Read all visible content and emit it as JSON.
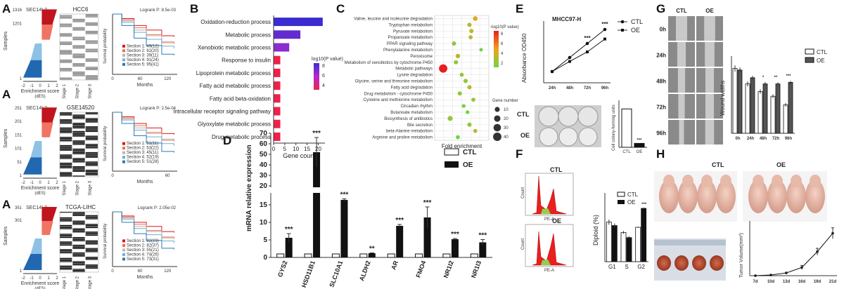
{
  "panels": {
    "A": {
      "label": "A",
      "rows": [
        {
          "gene": "SEC14L2",
          "dataset": "HCC6",
          "yticks": [
            "1316",
            "1201",
            "",
            "",
            "",
            "1"
          ],
          "samples_ylabel": "Samples",
          "x_label": "Enrichment score",
          "x_sub": "(dES)",
          "xticks": [
            "-2",
            "-1",
            "0",
            "1",
            "2"
          ],
          "km_title": "Logrank P: 8.5e-03",
          "km_xlabel": "Months",
          "km_ylabel": "Survival probability",
          "km_xticks": [
            "0",
            "60",
            "120"
          ],
          "legend": [
            "Section 1: 49(12)",
            "Section 2: 62(20)",
            "Section 3: 39(11)",
            "Section 4: 91(24)",
            "Section 5: 95(41)"
          ]
        },
        {
          "gene": "SEC14L2",
          "dataset": "GSE14520",
          "yticks": [
            "251",
            "201",
            "151",
            "101",
            "51",
            "1"
          ],
          "samples_ylabel": "Samples",
          "x_label": "Enrichment score",
          "x_sub": "(dES)",
          "xticks": [
            "-2",
            "-1",
            "0",
            "1",
            "2"
          ],
          "km_title": "Logrank P: 2.5e-04",
          "km_xlabel": "Months",
          "km_ylabel": "Survival probability",
          "km_xticks": [
            "0",
            "",
            "60"
          ],
          "legend": [
            "Section 1: 51(11)",
            "Section 2: 53(22)",
            "Section 3: 45(11)",
            "Section 4: 52(19)",
            "Section 5: 51(28)"
          ]
        },
        {
          "gene": "SEC14L2",
          "dataset": "TCGA-LIHC",
          "yticks": [
            "351",
            "301",
            "",
            "",
            "",
            "1"
          ],
          "samples_ylabel": "Samples",
          "x_label": "Enrichment score",
          "x_sub": "(dES)",
          "xticks": [
            "-2",
            "-1",
            "0",
            "1",
            "2"
          ],
          "km_title": "Logrank P: 2.05e-02",
          "km_xlabel": "Months",
          "km_ylabel": "Survival probability",
          "km_xticks": [
            "0",
            "60",
            "120"
          ],
          "legend": [
            "Section 1: 82(23)",
            "Section 2: 82(37)",
            "Section 3: 55(21)",
            "Section 4: 74(26)",
            "Section 5: 73(31)"
          ]
        }
      ],
      "stage_labels": [
        "Stage 1",
        "Stage 2",
        "Stage 3"
      ]
    },
    "B": {
      "label": "B",
      "xlabel": "Gene count",
      "xticks": [
        "0",
        "5",
        "10",
        "15",
        "20"
      ],
      "legend_title": "log10(P value)",
      "legend_ticks": [
        "8",
        "6",
        "4"
      ]
    },
    "C": {
      "label": "C",
      "xlabel": "Fold enrichment",
      "legend_title": "-log10(P value)",
      "legend_ticks": [
        "8",
        "6",
        "4",
        "2"
      ],
      "size_title": "Gene number",
      "size_ticks": [
        "10",
        "20",
        "30",
        "40"
      ]
    },
    "D": {
      "label": "D",
      "ylabel": "mRNA relative expression",
      "legend": [
        "CTL",
        "OE"
      ]
    },
    "E": {
      "label": "E",
      "title": "MHCC97-H",
      "ylabel": "Absorbance OD450",
      "legend": [
        "CTL",
        "OE"
      ],
      "row_labels": [
        "CTL",
        "OE"
      ],
      "colony_ylabel": "Cell colony-forming units",
      "colony_x": [
        "CTL",
        "OE"
      ],
      "colony_sig": "***"
    },
    "F": {
      "label": "F",
      "ctl": "CTL",
      "oe": "OE",
      "ylabel": "Diploid (%)",
      "legend": [
        "CTL",
        "OE"
      ],
      "flow_ylabel": "Count",
      "flow_xlabel": "PE-A"
    },
    "G": {
      "label": "G",
      "cols": [
        "CTL",
        "OE"
      ],
      "rows": [
        "0h",
        "24h",
        "48h",
        "72h",
        "96h"
      ],
      "ylabel": "Wound widths",
      "legend": [
        "CTL",
        "OE"
      ]
    },
    "H": {
      "label": "H",
      "ctl": "CTL",
      "oe": "OE",
      "ylabel": "Tumor Volume(mm³)"
    }
  },
  "chart_data": [
    {
      "id": "B",
      "type": "bar",
      "orientation": "horizontal",
      "categories": [
        "Oxidation-reduction process",
        "Metabolic process",
        "Xenobiotic metabolic process",
        "Response to insulin",
        "Lipoprotein metabolic process",
        "Fatty acid metabolic process",
        "Fatty acid beta-oxidation",
        "Intracellular receptor signaling pathway",
        "Glyoxylate metabolic process",
        "Drug metabolic process"
      ],
      "values": [
        22,
        12,
        7,
        3,
        3,
        3,
        3,
        3,
        3,
        3
      ],
      "neglog10p": [
        9,
        8,
        7,
        3,
        3,
        3,
        3,
        3,
        3,
        3
      ],
      "xlim": [
        0,
        23
      ]
    },
    {
      "id": "C",
      "type": "scatter",
      "categories": [
        "Valine, leucine and isoleucine degradation",
        "Tryptophan metabolism",
        "Pyruvate metabolism",
        "Propanoate metabolism",
        "PPAR signaling pathway",
        "Phenylalanine metabolism",
        "Peroxisome",
        "Metabolism of xenobiotics by cytochrome P450",
        "Metabolic pathways",
        "Lysine degradation",
        "Glycine, serine and threonine metabolism",
        "Fatty acid degradation",
        "Drug metabolism - cytochrome P450",
        "Cysteine and methionine metabolism",
        "Circadian rhythm",
        "Butanoate metabolism",
        "Biosynthesis of antibiotics",
        "Bile secretion",
        "beta-Alanine metabolism",
        "Arginine and proline metabolism"
      ],
      "fold": [
        10.5,
        9,
        9.5,
        9.3,
        5,
        12,
        6,
        5.5,
        2.2,
        7,
        8,
        9,
        6.5,
        10,
        7.5,
        8.5,
        4,
        9,
        10.5,
        6
      ],
      "neglog10p": [
        5,
        4,
        4,
        4,
        3,
        2,
        4,
        3,
        9,
        3,
        3,
        4,
        3,
        3,
        2,
        2,
        3,
        3,
        4,
        2
      ],
      "genes": [
        8,
        6,
        6,
        5,
        6,
        3,
        7,
        6,
        40,
        5,
        6,
        6,
        6,
        5,
        4,
        4,
        10,
        6,
        5,
        5
      ]
    },
    {
      "id": "D",
      "type": "bar",
      "categories": [
        "GYS2",
        "HSD11B1",
        "SLC10A1",
        "ALDH2",
        "AR",
        "FMO4",
        "NR1I2",
        "NR1I3"
      ],
      "series": [
        {
          "name": "CTL",
          "values": [
            1,
            1,
            1,
            1,
            1,
            1,
            1,
            1
          ],
          "err": [
            0.1,
            0.1,
            0.1,
            0.1,
            0.1,
            0.1,
            0.1,
            0.1
          ]
        },
        {
          "name": "OE",
          "values": [
            5.6,
            52,
            16.4,
            1.2,
            9,
            11.4,
            5.2,
            4.3
          ],
          "err": [
            1.2,
            14,
            0.3,
            0.1,
            0.4,
            3.0,
            0.2,
            0.8
          ]
        }
      ],
      "sig": [
        "***",
        "***",
        "***",
        "**",
        "***",
        "***",
        "***",
        "***"
      ],
      "yticks_lower": [
        0,
        5,
        10,
        15
      ],
      "yticks_upper": [
        20,
        30,
        40,
        50,
        60,
        70
      ]
    },
    {
      "id": "E",
      "type": "line",
      "x": [
        "24h",
        "48h",
        "72h",
        "96h"
      ],
      "series": [
        {
          "name": "CTL",
          "values": [
            0.8,
            1.05,
            1.3,
            1.55
          ]
        },
        {
          "name": "OE",
          "values": [
            0.8,
            0.98,
            1.15,
            1.38
          ]
        }
      ],
      "sig": [
        "",
        "",
        "***",
        "***"
      ]
    },
    {
      "id": "E-colony",
      "type": "bar",
      "categories": [
        "CTL",
        "OE"
      ],
      "values": [
        490,
        50
      ],
      "err": [
        10,
        8
      ],
      "ylim": [
        0,
        600
      ]
    },
    {
      "id": "F",
      "type": "bar",
      "categories": [
        "G1",
        "S",
        "G2"
      ],
      "series": [
        {
          "name": "CTL",
          "values": [
            23,
            17,
            20
          ],
          "err": [
            1.5,
            0.8,
            0.3
          ]
        },
        {
          "name": "OE",
          "values": [
            21,
            14,
            31
          ],
          "err": [
            1.2,
            0.8,
            0.5
          ]
        }
      ],
      "sig": [
        "",
        "",
        "***"
      ],
      "ylim": [
        0,
        40
      ]
    },
    {
      "id": "G",
      "type": "bar",
      "categories": [
        "0h",
        "24h",
        "48h",
        "72h",
        "96h"
      ],
      "series": [
        {
          "name": "CTL",
          "values": [
            210,
            160,
            135,
            120,
            92
          ],
          "err": [
            10,
            8,
            7,
            6,
            6
          ]
        },
        {
          "name": "OE",
          "values": [
            205,
            180,
            160,
            160,
            165
          ],
          "err": [
            8,
            6,
            6,
            5,
            5
          ]
        }
      ],
      "sig": [
        "",
        "",
        "*",
        "**",
        "***"
      ],
      "ylim": [
        0,
        250
      ]
    },
    {
      "id": "H",
      "type": "line",
      "x": [
        "7d",
        "10d",
        "13d",
        "16d",
        "19d",
        "21d"
      ],
      "values": [
        0,
        10,
        40,
        120,
        350,
        620
      ],
      "err": [
        0,
        5,
        10,
        30,
        50,
        80
      ]
    }
  ]
}
